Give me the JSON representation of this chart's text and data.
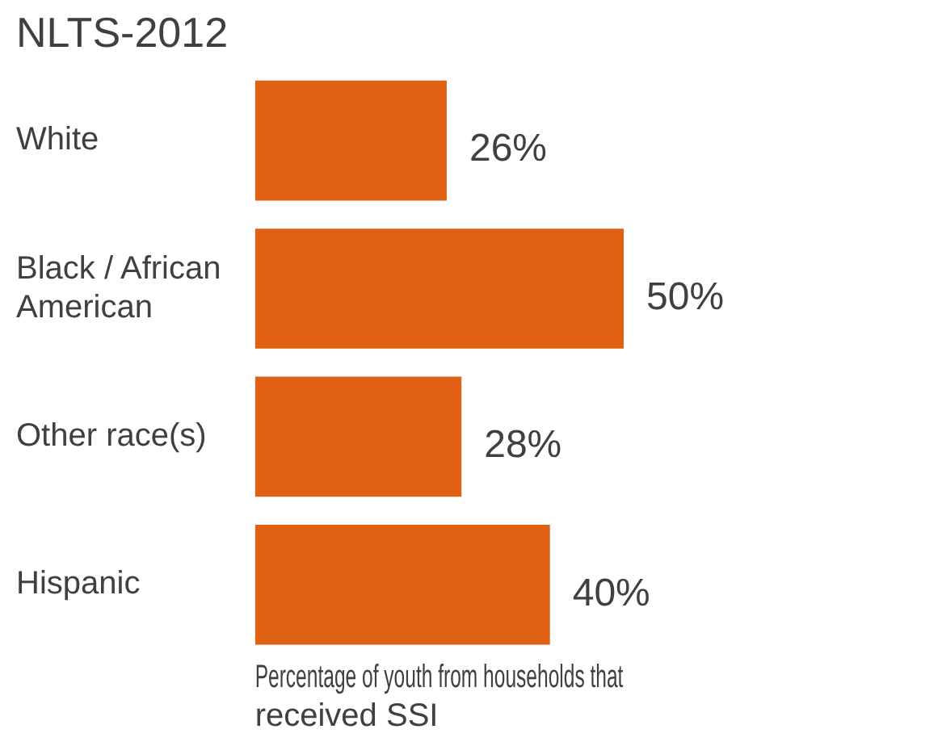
{
  "chart_data": {
    "type": "bar",
    "orientation": "horizontal",
    "title": "NLTS-2012",
    "xlabel": "Percentage of youth from households that received SSI",
    "categories": [
      "White",
      "Black / African American",
      "Other race(s)",
      "Hispanic"
    ],
    "values": [
      26,
      50,
      28,
      40
    ],
    "value_labels": [
      "26%",
      "50%",
      "28%",
      "40%"
    ],
    "color": "#e06014",
    "tick_labels": "y"
  }
}
